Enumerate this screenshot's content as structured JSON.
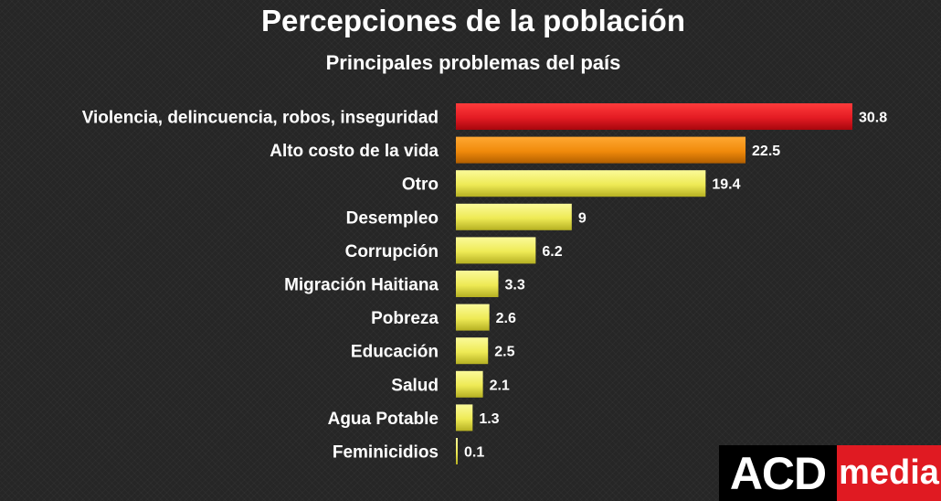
{
  "title": "Percepciones de la población",
  "subtitle": "Principales problemas del país",
  "logo": {
    "left": "ACD",
    "right": "media"
  },
  "colors": {
    "background": "#262626",
    "top_bar": "#e31b23",
    "second_bar": "#f08a0b",
    "other_bars": "#f1ee5e",
    "text": "#ffffff"
  },
  "chart_data": {
    "type": "bar",
    "orientation": "horizontal",
    "title": "Percepciones de la población",
    "subtitle": "Principales problemas del país",
    "categories": [
      "Violencia, delincuencia, robos, inseguridad",
      "Alto costo de la vida",
      "Otro",
      "Desempleo",
      "Corrupción",
      "Migración Haitiana",
      "Pobreza",
      "Educación",
      "Salud",
      "Agua Potable",
      "Feminicidios"
    ],
    "values": [
      30.8,
      22.5,
      19.4,
      9,
      6.2,
      3.3,
      2.6,
      2.5,
      2.1,
      1.3,
      0.1
    ],
    "value_labels": [
      "30.8",
      "22.5",
      "19.4",
      "9",
      "6.2",
      "3.3",
      "2.6",
      "2.5",
      "2.1",
      "1.3",
      "0.1"
    ],
    "bar_colors": [
      "#e31b23",
      "#f08a0b",
      "#f1ee5e",
      "#f1ee5e",
      "#f1ee5e",
      "#f1ee5e",
      "#f1ee5e",
      "#f1ee5e",
      "#f1ee5e",
      "#f1ee5e",
      "#f1ee5e"
    ],
    "xlim": [
      0,
      30.8
    ],
    "xlabel": "",
    "ylabel": "",
    "grid": false,
    "legend": "none"
  }
}
